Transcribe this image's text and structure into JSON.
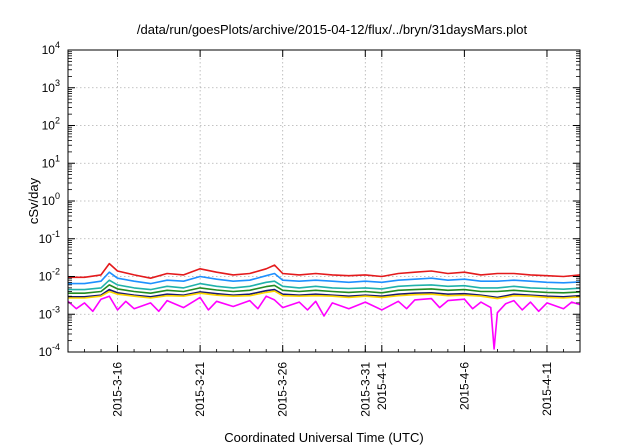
{
  "chart_data": {
    "type": "line",
    "title": "/data/run/goesPlots/archive/2015-04-12/flux/../bryn/31daysMars.plot",
    "xlabel": "Coordinated Universal Time (UTC)",
    "ylabel": "cSv/day",
    "yscale": "log",
    "ylim": [
      0.0001,
      10000
    ],
    "xlim": [
      "2015-03-13",
      "2015-04-13"
    ],
    "grid": true,
    "y_ticks": [
      {
        "base": "10",
        "exp": "-4"
      },
      {
        "base": "10",
        "exp": "-3"
      },
      {
        "base": "10",
        "exp": "-2"
      },
      {
        "base": "10",
        "exp": "-1"
      },
      {
        "base": "10",
        "exp": "0"
      },
      {
        "base": "10",
        "exp": "1"
      },
      {
        "base": "10",
        "exp": "2"
      },
      {
        "base": "10",
        "exp": "3"
      },
      {
        "base": "10",
        "exp": "4"
      }
    ],
    "x_ticks": [
      {
        "date": "2015-03-16",
        "label": "2015-3-16"
      },
      {
        "date": "2015-03-21",
        "label": "2015-3-21"
      },
      {
        "date": "2015-03-26",
        "label": "2015-3-26"
      },
      {
        "date": "2015-03-31",
        "label": "2015-3-31"
      },
      {
        "date": "2015-04-01",
        "label": "2015-4-1"
      },
      {
        "date": "2015-04-06",
        "label": "2015-4-6"
      },
      {
        "date": "2015-04-11",
        "label": "2015-4-11"
      }
    ],
    "series": [
      {
        "color": "#e41a1c",
        "points": [
          [
            "2015-03-13",
            0.0095
          ],
          [
            "2015-03-14",
            0.0095
          ],
          [
            "2015-03-15",
            0.011
          ],
          [
            "2015-03-15.5",
            0.022
          ],
          [
            "2015-03-16",
            0.014
          ],
          [
            "2015-03-17",
            0.011
          ],
          [
            "2015-03-18",
            0.009
          ],
          [
            "2015-03-19",
            0.012
          ],
          [
            "2015-03-20",
            0.011
          ],
          [
            "2015-03-21",
            0.016
          ],
          [
            "2015-03-22",
            0.013
          ],
          [
            "2015-03-23",
            0.011
          ],
          [
            "2015-03-24",
            0.012
          ],
          [
            "2015-03-25",
            0.016
          ],
          [
            "2015-03-25.5",
            0.02
          ],
          [
            "2015-03-26",
            0.012
          ],
          [
            "2015-03-27",
            0.011
          ],
          [
            "2015-03-28",
            0.012
          ],
          [
            "2015-03-29",
            0.011
          ],
          [
            "2015-03-30",
            0.0105
          ],
          [
            "2015-03-31",
            0.011
          ],
          [
            "2015-04-01",
            0.01
          ],
          [
            "2015-04-02",
            0.012
          ],
          [
            "2015-04-03",
            0.013
          ],
          [
            "2015-04-04",
            0.014
          ],
          [
            "2015-04-05",
            0.012
          ],
          [
            "2015-04-06",
            0.013
          ],
          [
            "2015-04-07",
            0.011
          ],
          [
            "2015-04-08",
            0.012
          ],
          [
            "2015-04-09",
            0.012
          ],
          [
            "2015-04-10",
            0.011
          ],
          [
            "2015-04-11",
            0.0105
          ],
          [
            "2015-04-12",
            0.01
          ],
          [
            "2015-04-13",
            0.011
          ]
        ]
      },
      {
        "color": "#1e90ff",
        "points": [
          [
            "2015-03-13",
            0.0065
          ],
          [
            "2015-03-14",
            0.0065
          ],
          [
            "2015-03-15",
            0.0075
          ],
          [
            "2015-03-15.5",
            0.013
          ],
          [
            "2015-03-16",
            0.009
          ],
          [
            "2015-03-17",
            0.0075
          ],
          [
            "2015-03-18",
            0.0065
          ],
          [
            "2015-03-19",
            0.008
          ],
          [
            "2015-03-20",
            0.0075
          ],
          [
            "2015-03-21",
            0.01
          ],
          [
            "2015-03-22",
            0.0085
          ],
          [
            "2015-03-23",
            0.0075
          ],
          [
            "2015-03-24",
            0.008
          ],
          [
            "2015-03-25",
            0.0105
          ],
          [
            "2015-03-25.5",
            0.012
          ],
          [
            "2015-03-26",
            0.008
          ],
          [
            "2015-03-27",
            0.0075
          ],
          [
            "2015-03-28",
            0.008
          ],
          [
            "2015-03-29",
            0.0075
          ],
          [
            "2015-03-30",
            0.007
          ],
          [
            "2015-03-31",
            0.0075
          ],
          [
            "2015-04-01",
            0.007
          ],
          [
            "2015-04-02",
            0.008
          ],
          [
            "2015-04-03",
            0.0085
          ],
          [
            "2015-04-04",
            0.009
          ],
          [
            "2015-04-05",
            0.008
          ],
          [
            "2015-04-06",
            0.0085
          ],
          [
            "2015-04-07",
            0.0075
          ],
          [
            "2015-04-08",
            0.0075
          ],
          [
            "2015-04-09",
            0.008
          ],
          [
            "2015-04-10",
            0.0075
          ],
          [
            "2015-04-11",
            0.007
          ],
          [
            "2015-04-12",
            0.0068
          ],
          [
            "2015-04-13",
            0.0072
          ]
        ]
      },
      {
        "color": "#20b2aa",
        "points": [
          [
            "2015-03-13",
            0.0045
          ],
          [
            "2015-03-14",
            0.0045
          ],
          [
            "2015-03-15",
            0.005
          ],
          [
            "2015-03-15.5",
            0.008
          ],
          [
            "2015-03-16",
            0.006
          ],
          [
            "2015-03-17",
            0.005
          ],
          [
            "2015-03-18",
            0.0045
          ],
          [
            "2015-03-19",
            0.0055
          ],
          [
            "2015-03-20",
            0.005
          ],
          [
            "2015-03-21",
            0.0065
          ],
          [
            "2015-03-22",
            0.0055
          ],
          [
            "2015-03-23",
            0.005
          ],
          [
            "2015-03-24",
            0.0055
          ],
          [
            "2015-03-25",
            0.007
          ],
          [
            "2015-03-25.5",
            0.0075
          ],
          [
            "2015-03-26",
            0.0055
          ],
          [
            "2015-03-27",
            0.005
          ],
          [
            "2015-03-28",
            0.0055
          ],
          [
            "2015-03-29",
            0.005
          ],
          [
            "2015-03-30",
            0.0048
          ],
          [
            "2015-03-31",
            0.005
          ],
          [
            "2015-04-01",
            0.0047
          ],
          [
            "2015-04-02",
            0.0055
          ],
          [
            "2015-04-03",
            0.0058
          ],
          [
            "2015-04-04",
            0.006
          ],
          [
            "2015-04-05",
            0.0055
          ],
          [
            "2015-04-06",
            0.0057
          ],
          [
            "2015-04-07",
            0.005
          ],
          [
            "2015-04-08",
            0.005
          ],
          [
            "2015-04-09",
            0.0055
          ],
          [
            "2015-04-10",
            0.005
          ],
          [
            "2015-04-11",
            0.0048
          ],
          [
            "2015-04-12",
            0.0046
          ],
          [
            "2015-04-13",
            0.0049
          ]
        ]
      },
      {
        "color": "#228b22",
        "points": [
          [
            "2015-03-13",
            0.0036
          ],
          [
            "2015-03-14",
            0.0036
          ],
          [
            "2015-03-15",
            0.004
          ],
          [
            "2015-03-15.5",
            0.006
          ],
          [
            "2015-03-16",
            0.0047
          ],
          [
            "2015-03-17",
            0.004
          ],
          [
            "2015-03-18",
            0.0036
          ],
          [
            "2015-03-19",
            0.0043
          ],
          [
            "2015-03-20",
            0.004
          ],
          [
            "2015-03-21",
            0.005
          ],
          [
            "2015-03-22",
            0.0044
          ],
          [
            "2015-03-23",
            0.004
          ],
          [
            "2015-03-24",
            0.0043
          ],
          [
            "2015-03-25",
            0.0054
          ],
          [
            "2015-03-25.5",
            0.0058
          ],
          [
            "2015-03-26",
            0.0043
          ],
          [
            "2015-03-27",
            0.004
          ],
          [
            "2015-03-28",
            0.0043
          ],
          [
            "2015-03-29",
            0.004
          ],
          [
            "2015-03-30",
            0.0038
          ],
          [
            "2015-03-31",
            0.004
          ],
          [
            "2015-04-01",
            0.0037
          ],
          [
            "2015-04-02",
            0.0043
          ],
          [
            "2015-04-03",
            0.0045
          ],
          [
            "2015-04-04",
            0.0047
          ],
          [
            "2015-04-05",
            0.0043
          ],
          [
            "2015-04-06",
            0.0045
          ],
          [
            "2015-04-07",
            0.004
          ],
          [
            "2015-04-08",
            0.004
          ],
          [
            "2015-04-09",
            0.0043
          ],
          [
            "2015-04-10",
            0.004
          ],
          [
            "2015-04-11",
            0.0038
          ],
          [
            "2015-04-12",
            0.0037
          ],
          [
            "2015-04-13",
            0.0039
          ]
        ]
      },
      {
        "color": "#191970",
        "points": [
          [
            "2015-03-13",
            0.0029
          ],
          [
            "2015-03-14",
            0.0029
          ],
          [
            "2015-03-15",
            0.0032
          ],
          [
            "2015-03-15.5",
            0.0045
          ],
          [
            "2015-03-16",
            0.0037
          ],
          [
            "2015-03-17",
            0.0032
          ],
          [
            "2015-03-18",
            0.0029
          ],
          [
            "2015-03-19",
            0.0034
          ],
          [
            "2015-03-20",
            0.0032
          ],
          [
            "2015-03-21",
            0.0039
          ],
          [
            "2015-03-22",
            0.0035
          ],
          [
            "2015-03-23",
            0.0032
          ],
          [
            "2015-03-24",
            0.0034
          ],
          [
            "2015-03-25",
            0.0042
          ],
          [
            "2015-03-25.5",
            0.0045
          ],
          [
            "2015-03-26",
            0.0034
          ],
          [
            "2015-03-27",
            0.0032
          ],
          [
            "2015-03-28",
            0.0034
          ],
          [
            "2015-03-29",
            0.0032
          ],
          [
            "2015-03-30",
            0.003
          ],
          [
            "2015-03-31",
            0.0032
          ],
          [
            "2015-04-01",
            0.003
          ],
          [
            "2015-04-02",
            0.0034
          ],
          [
            "2015-04-03",
            0.0036
          ],
          [
            "2015-04-04",
            0.0037
          ],
          [
            "2015-04-05",
            0.0034
          ],
          [
            "2015-04-06",
            0.0035
          ],
          [
            "2015-04-07",
            0.0032
          ],
          [
            "2015-04-08",
            0.0028
          ],
          [
            "2015-04-09",
            0.0034
          ],
          [
            "2015-04-10",
            0.0032
          ],
          [
            "2015-04-11",
            0.003
          ],
          [
            "2015-04-12",
            0.0029
          ],
          [
            "2015-04-13",
            0.0031
          ]
        ]
      },
      {
        "color": "#ffd700",
        "points": [
          [
            "2015-03-13",
            0.0027
          ],
          [
            "2015-03-14",
            0.0027
          ],
          [
            "2015-03-15",
            0.003
          ],
          [
            "2015-03-15.5",
            0.004
          ],
          [
            "2015-03-16",
            0.0034
          ],
          [
            "2015-03-17",
            0.003
          ],
          [
            "2015-03-18",
            0.0027
          ],
          [
            "2015-03-19",
            0.0031
          ],
          [
            "2015-03-20",
            0.003
          ],
          [
            "2015-03-21",
            0.0036
          ],
          [
            "2015-03-22",
            0.0032
          ],
          [
            "2015-03-23",
            0.003
          ],
          [
            "2015-03-24",
            0.0031
          ],
          [
            "2015-03-25",
            0.0038
          ],
          [
            "2015-03-25.5",
            0.0041
          ],
          [
            "2015-03-26",
            0.0031
          ],
          [
            "2015-03-27",
            0.003
          ],
          [
            "2015-03-28",
            0.0031
          ],
          [
            "2015-03-29",
            0.003
          ],
          [
            "2015-03-30",
            0.0028
          ],
          [
            "2015-03-31",
            0.003
          ],
          [
            "2015-04-01",
            0.0028
          ],
          [
            "2015-04-02",
            0.0031
          ],
          [
            "2015-04-03",
            0.0033
          ],
          [
            "2015-04-04",
            0.0034
          ],
          [
            "2015-04-05",
            0.0031
          ],
          [
            "2015-04-06",
            0.0032
          ],
          [
            "2015-04-07",
            0.003
          ],
          [
            "2015-04-08",
            0.0026
          ],
          [
            "2015-04-09",
            0.0031
          ],
          [
            "2015-04-10",
            0.003
          ],
          [
            "2015-04-11",
            0.0028
          ],
          [
            "2015-04-12",
            0.0027
          ],
          [
            "2015-04-13",
            0.0029
          ]
        ]
      },
      {
        "color": "#ff00ff",
        "points": [
          [
            "2015-03-13",
            0.0022
          ],
          [
            "2015-03-13.5",
            0.0014
          ],
          [
            "2015-03-14",
            0.002
          ],
          [
            "2015-03-14.5",
            0.0012
          ],
          [
            "2015-03-15",
            0.0025
          ],
          [
            "2015-03-15.5",
            0.003
          ],
          [
            "2015-03-16",
            0.0013
          ],
          [
            "2015-03-16.5",
            0.0022
          ],
          [
            "2015-03-17",
            0.0014
          ],
          [
            "2015-03-18",
            0.002
          ],
          [
            "2015-03-18.5",
            0.0012
          ],
          [
            "2015-03-19",
            0.0023
          ],
          [
            "2015-03-20",
            0.0015
          ],
          [
            "2015-03-21",
            0.0028
          ],
          [
            "2015-03-21.5",
            0.0013
          ],
          [
            "2015-03-22",
            0.0022
          ],
          [
            "2015-03-23",
            0.0016
          ],
          [
            "2015-03-24",
            0.0023
          ],
          [
            "2015-03-24.5",
            0.0014
          ],
          [
            "2015-03-25",
            0.003
          ],
          [
            "2015-03-25.5",
            0.0024
          ],
          [
            "2015-03-26",
            0.0015
          ],
          [
            "2015-03-27",
            0.0021
          ],
          [
            "2015-03-27.5",
            0.0013
          ],
          [
            "2015-03-28",
            0.0022
          ],
          [
            "2015-03-28.5",
            0.0009
          ],
          [
            "2015-03-29",
            0.002
          ],
          [
            "2015-03-30",
            0.0014
          ],
          [
            "2015-03-31",
            0.0021
          ],
          [
            "2015-04-01",
            0.0013
          ],
          [
            "2015-04-02",
            0.0022
          ],
          [
            "2015-04-02.5",
            0.0014
          ],
          [
            "2015-04-03",
            0.0024
          ],
          [
            "2015-04-04",
            0.0026
          ],
          [
            "2015-04-04.5",
            0.0015
          ],
          [
            "2015-04-05",
            0.0023
          ],
          [
            "2015-04-06",
            0.0025
          ],
          [
            "2015-04-06.5",
            0.0014
          ],
          [
            "2015-04-07",
            0.0021
          ],
          [
            "2015-04-07.6",
            0.0015
          ],
          [
            "2015-04-07.8",
            0.00012
          ],
          [
            "2015-04-08",
            0.0011
          ],
          [
            "2015-04-08.5",
            0.0019
          ],
          [
            "2015-04-09",
            0.0023
          ],
          [
            "2015-04-09.5",
            0.0013
          ],
          [
            "2015-04-10",
            0.0021
          ],
          [
            "2015-04-10.5",
            0.0012
          ],
          [
            "2015-04-11",
            0.002
          ],
          [
            "2015-04-12",
            0.0014
          ],
          [
            "2015-04-12.5",
            0.0021
          ],
          [
            "2015-04-13",
            0.0018
          ]
        ]
      }
    ]
  }
}
